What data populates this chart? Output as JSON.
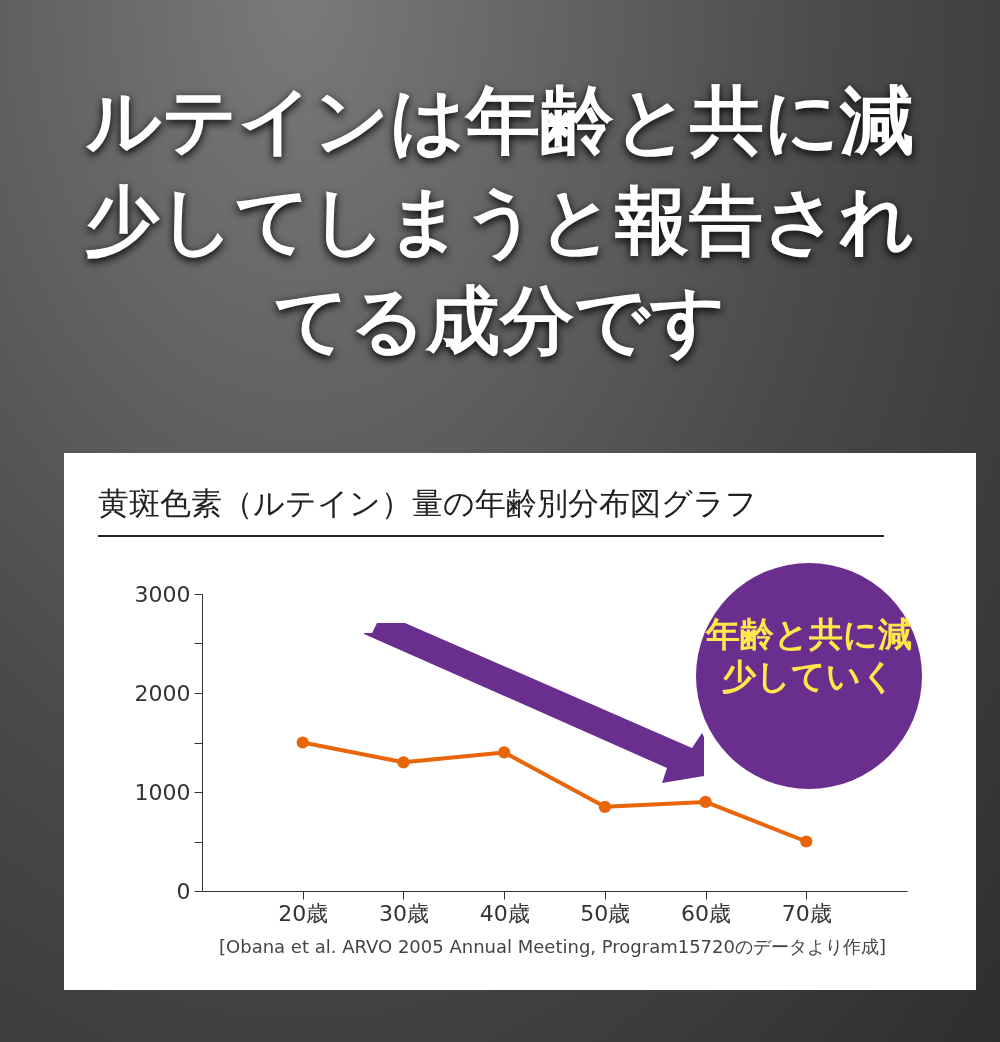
{
  "chart_data": {
    "type": "line",
    "title": "ルテインは年齢と共に減少してしまうと報告されてる成分です",
    "subtitle": "黄斑色素（ルテイン）量の年齢別分布図グラフ",
    "annotations": [
      "年齢と共に減少していく",
      "[Obana et al. ARVO 2005 Annual Meeting, Program15720のデータより作成]"
    ],
    "x": [
      20,
      30,
      40,
      50,
      60,
      70
    ],
    "series": [
      {
        "color": "#e8650a",
        "values": [
          1500,
          1300,
          1400,
          850,
          900,
          500
        ]
      }
    ],
    "xlim": [
      10,
      80
    ],
    "xticks": [
      {
        "value": 20,
        "label": "20歳"
      },
      {
        "value": 30,
        "label": "30歳"
      },
      {
        "value": 40,
        "label": "40歳"
      },
      {
        "value": 50,
        "label": "50歳"
      },
      {
        "value": 60,
        "label": "60歳"
      },
      {
        "value": 70,
        "label": "70歳"
      }
    ],
    "ylim": [
      0,
      3000
    ],
    "yticks": [
      0,
      {
        "value": 500,
        "label": null
      },
      1000,
      {
        "value": 1500,
        "label": null
      },
      2000,
      {
        "value": 2500,
        "label": null
      },
      3000
    ],
    "grid": false,
    "legend": false,
    "marker": "circle",
    "line_style": "solid"
  }
}
